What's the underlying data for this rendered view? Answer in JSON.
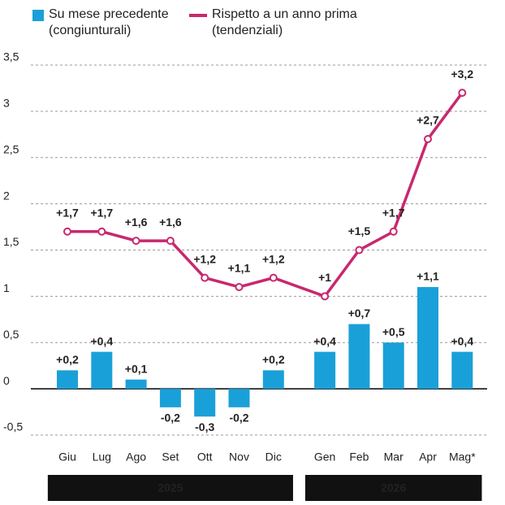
{
  "chart_data": {
    "type": "bar-line",
    "categories": [
      "Giu",
      "Lug",
      "Ago",
      "Set",
      "Ott",
      "Nov",
      "Dic",
      "Gen",
      "Feb",
      "Mar",
      "Apr",
      "Mag*"
    ],
    "groups": [
      {
        "label": "2025",
        "count": 7
      },
      {
        "label": "2026",
        "count": 5
      }
    ],
    "series": [
      {
        "name": "Su mese precedente (congiunturali)",
        "type": "bar",
        "color": "#1aa0d8",
        "values": [
          0.2,
          0.4,
          0.1,
          -0.2,
          -0.3,
          -0.2,
          0.2,
          0.4,
          0.7,
          0.5,
          1.1,
          0.4
        ],
        "value_labels": [
          "+0,2",
          "+0,4",
          "+0,1",
          "-0,2",
          "-0,3",
          "-0,2",
          "+0,2",
          "+0,4",
          "+0,7",
          "+0,5",
          "+1,1",
          "+0,4"
        ]
      },
      {
        "name": "Rispetto a un anno prima (tendenziali)",
        "type": "line",
        "color": "#c8286e",
        "values": [
          1.7,
          1.7,
          1.6,
          1.6,
          1.2,
          1.1,
          1.2,
          1,
          1.5,
          1.7,
          2.7,
          3.2
        ],
        "value_labels": [
          "+1,7",
          "+1,7",
          "+1,6",
          "+1,6",
          "+1,2",
          "+1,1",
          "+1,2",
          "+1",
          "+1,5",
          "+1,7",
          "+2,7",
          "+3,2"
        ]
      }
    ],
    "ylim": [
      -0.5,
      3.5
    ],
    "yticks": [
      {
        "value": -0.5,
        "label": "-0,5"
      },
      0,
      {
        "value": 0.5,
        "label": "0,5"
      },
      1,
      {
        "value": 1.5,
        "label": "1,5"
      },
      2,
      {
        "value": 2.5,
        "label": "2,5"
      },
      3,
      {
        "value": 3.5,
        "label": "3,5"
      }
    ],
    "grid": true
  }
}
